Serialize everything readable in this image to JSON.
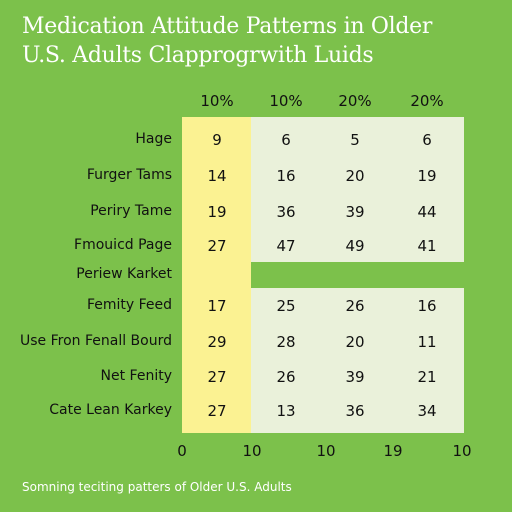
{
  "title_lines": [
    "Medication Attitude Patterns in Older",
    "U.S. Adults Clapprogrwith Luids"
  ],
  "caption": "Somning teciting patters of Older U.S. Adults",
  "colors": {
    "background": "#7cc14b",
    "table": "#eaf1da",
    "highlight": "#fbf292"
  },
  "chart_data": {
    "type": "table",
    "columns": [
      "10%",
      "10%",
      "20%",
      "20%"
    ],
    "rows": [
      {
        "label": "Hage",
        "values": [
          "9",
          "6",
          "5",
          "6"
        ]
      },
      {
        "label": "Furger Tams",
        "values": [
          "14",
          "16",
          "20",
          "19"
        ]
      },
      {
        "label": "Periry Tame",
        "values": [
          "19",
          "36",
          "39",
          "44"
        ]
      },
      {
        "label": "Fmouicd Page",
        "values": [
          "27",
          "47",
          "49",
          "41"
        ]
      },
      {
        "label": "Periew Karket",
        "values": [
          "",
          "",
          "",
          ""
        ]
      },
      {
        "label": "Femity Feed",
        "values": [
          "17",
          "25",
          "26",
          "16"
        ]
      },
      {
        "label": "Use Fron Fenall Bourd",
        "values": [
          "29",
          "28",
          "20",
          "11"
        ]
      },
      {
        "label": "Net Fenity",
        "values": [
          "27",
          "26",
          "39",
          "21"
        ]
      },
      {
        "label": "Cate Lean Karkey",
        "values": [
          "27",
          "13",
          "36",
          "34"
        ]
      }
    ],
    "x_ticks": [
      "0",
      "10",
      "10",
      "19",
      "10"
    ]
  }
}
